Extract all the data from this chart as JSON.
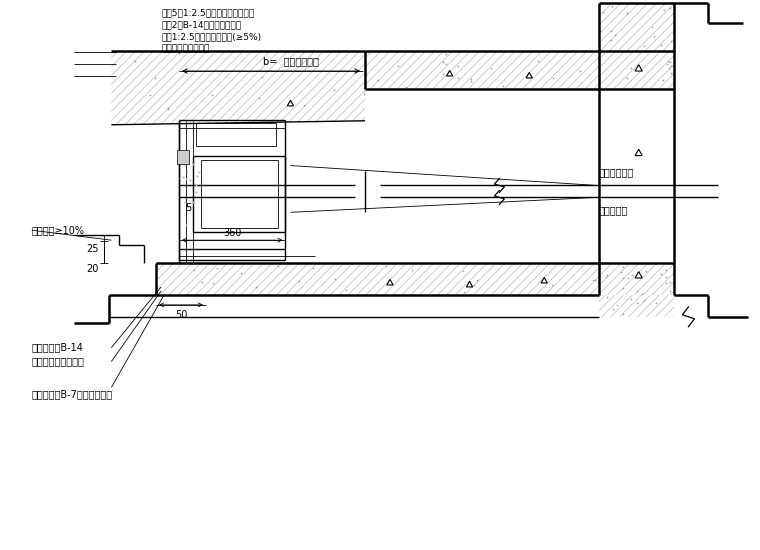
{
  "bg_color": "#ffffff",
  "annotations_top": [
    "批灰5厚1:2.5钢刷木素砂浆找平层",
    "涂刷2遍B-14弹性水泥防水层",
    "批灰1:2.5水泥砂浆找平层(≥5%)",
    "钢筋混凝土结构楼板"
  ],
  "annotation_b": "b=  （按设计定）",
  "ann_mid_1": "铝框压条嵌缝",
  "ann_mid_2": "聚氨酯泡沫",
  "ann_slope": "窗台坡度≥10%",
  "ann_bot_1": "硬泡聚氨酯B-14",
  "ann_bot_2": "弹性水泥砂浆防水层",
  "ann_bot_3": "硅酮耐候胶B-7嵌门框密水胶",
  "dim_25": "25",
  "dim_5": "5",
  "dim_360": "360",
  "dim_20": "20",
  "dim_50": "50"
}
